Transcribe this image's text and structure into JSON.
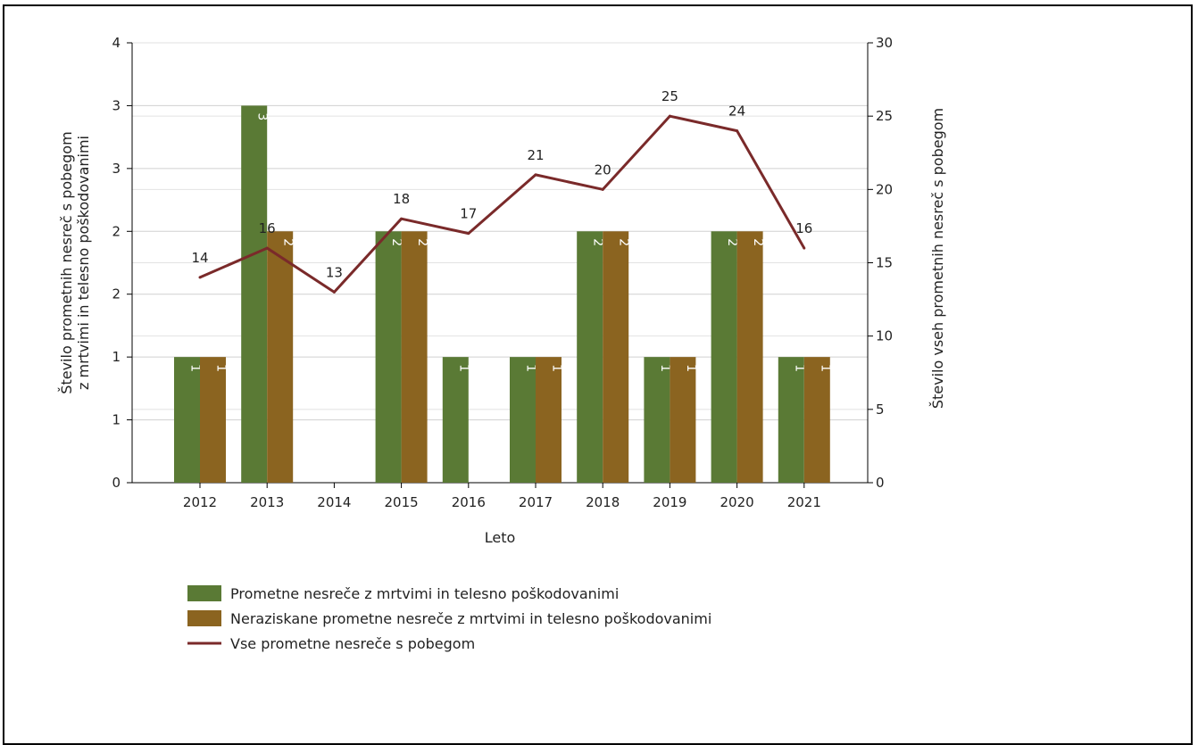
{
  "chart_data": {
    "type": "bar",
    "categories": [
      "2012",
      "2013",
      "2014",
      "2015",
      "2016",
      "2017",
      "2018",
      "2019",
      "2020",
      "2021"
    ],
    "series": [
      {
        "name": "Prometne nesreče z mrtvimi in telesno poškodovanimi",
        "kind": "bar",
        "axis": "left",
        "color": "#5a7a35",
        "values": [
          1,
          3,
          0,
          2,
          1,
          1,
          2,
          1,
          2,
          1
        ]
      },
      {
        "name": "Neraziskane prometne nesreče z mrtvimi in telesno poškodovanimi",
        "kind": "bar",
        "axis": "left",
        "color": "#8b6420",
        "values": [
          1,
          2,
          0,
          2,
          0,
          1,
          2,
          1,
          2,
          1
        ]
      },
      {
        "name": "Vse prometne nesreče s pobegom",
        "kind": "line",
        "axis": "right",
        "color": "#7a2a2a",
        "values": [
          14,
          16,
          13,
          18,
          17,
          21,
          20,
          25,
          24,
          16
        ]
      }
    ],
    "xlabel": "Leto",
    "ylabel_left_lines": [
      "Število prometnih nesreč s pobegom",
      "z mrtvimi in telesno poškodovanimi"
    ],
    "ylabel_right": "Število vseh prometnih nesreč s pobegom",
    "ylim_left": [
      0,
      3.5
    ],
    "ylim_right": [
      0,
      30
    ],
    "left_tick_labels": [
      "0",
      "1",
      "1",
      "2",
      "2",
      "3",
      "3",
      "4"
    ],
    "right_tick_labels": [
      "0",
      "5",
      "10",
      "15",
      "20",
      "25",
      "30"
    ],
    "grid": true,
    "legend_position": "bottom"
  }
}
